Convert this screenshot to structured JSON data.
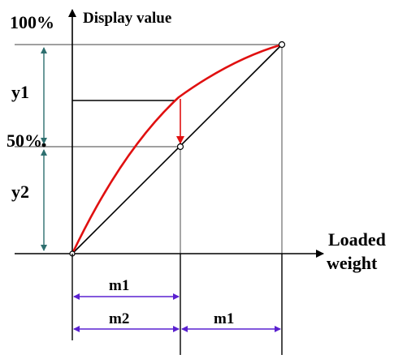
{
  "labels": {
    "hundred_percent": "100%",
    "display_value": "Display value",
    "y1": "y1",
    "fifty_percent": "50%",
    "y2": "y2",
    "loaded": "Loaded",
    "weight": "weight",
    "m1_top": "m1",
    "m2": "m2",
    "m1_bottom": "m1"
  },
  "colors": {
    "curve": "#e01010",
    "arrow_down": "#e01010",
    "dim_vertical": "#2e6f6f",
    "dim_horizontal": "#5a20d0",
    "axes": "#000000",
    "guides": "#808080"
  }
}
